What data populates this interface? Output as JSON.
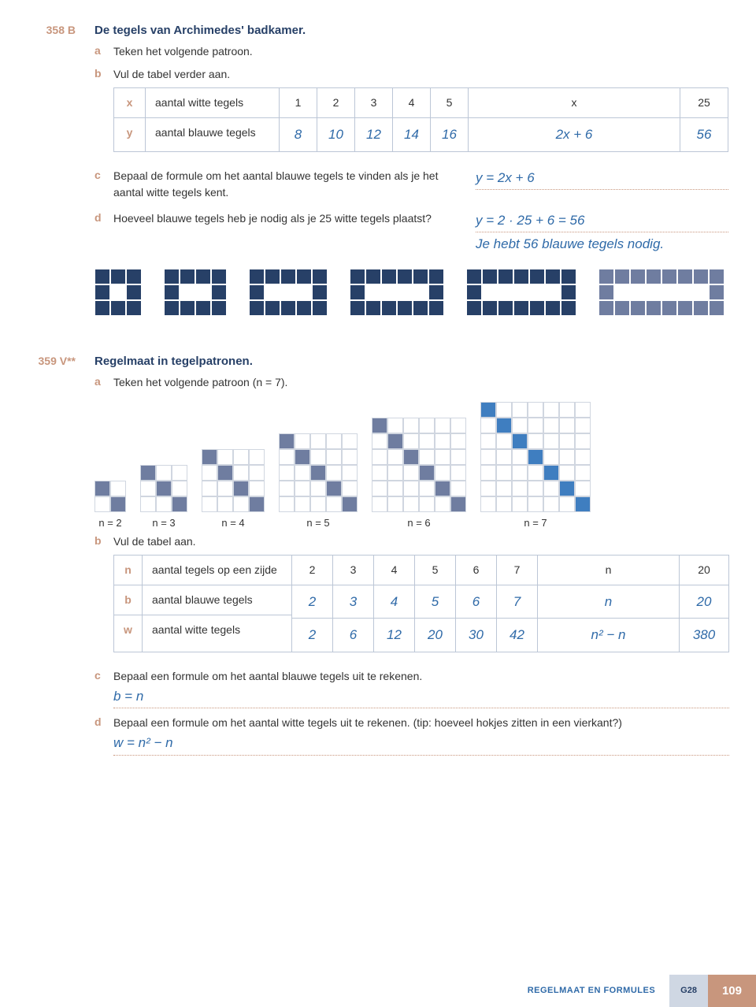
{
  "colors": {
    "dark_tile": "#274067",
    "light_tile": "#6f7da0",
    "blue_accent": "#3f7ec0",
    "salmon": "#c8967d",
    "answer_blue": "#2f6aa8",
    "grid_border": "#d0d6e0"
  },
  "ex358_num": "358 B",
  "ex358_title": "De tegels van Archimedes' badkamer.",
  "ex358_a": "Teken het volgende patroon.",
  "ex358_b": "Vul de tabel verder aan.",
  "table1": {
    "row_hdr1": "x",
    "row_hdr2": "y",
    "label1": "aantal witte tegels",
    "label2": "aantal blauwe tegels",
    "r1": [
      "1",
      "2",
      "3",
      "4",
      "5",
      "x",
      "25"
    ],
    "r2": [
      "8",
      "10",
      "12",
      "14",
      "16",
      "2x + 6",
      "56"
    ]
  },
  "ex358_c_q": "Bepaal de formule om het aantal blauwe tegels te vinden als je het aantal witte tegels kent.",
  "ex358_c_a": "y = 2x + 6",
  "ex358_d_q": "Hoeveel blauwe tegels heb je nodig als je 25 witte tegels plaatst?",
  "ex358_d_a1": "y = 2 · 25 + 6 = 56",
  "ex358_d_a2": "Je hebt 56 blauwe tegels nodig.",
  "ex359_num": "359 V**",
  "ex359_title": "Regelmaat in tegelpatronen.",
  "ex359_a": "Teken het volgende patroon (n = 7).",
  "diag_labels": [
    "n = 2",
    "n = 3",
    "n = 4",
    "n = 5",
    "n = 6",
    "n = 7"
  ],
  "ex359_b": "Vul de tabel aan.",
  "table2": {
    "h1": "n",
    "h2": "b",
    "h3": "w",
    "label1": "aantal tegels op een zijde",
    "label2": "aantal blauwe tegels",
    "label3": "aantal witte tegels",
    "r1": [
      "2",
      "3",
      "4",
      "5",
      "6",
      "7",
      "n",
      "20"
    ],
    "r2": [
      "2",
      "3",
      "4",
      "5",
      "6",
      "7",
      "n",
      "20"
    ],
    "r3": [
      "2",
      "6",
      "12",
      "20",
      "30",
      "42",
      "n² − n",
      "380"
    ]
  },
  "ex359_c_q": "Bepaal een formule om het aantal blauwe tegels uit te rekenen.",
  "ex359_c_a": "b = n",
  "ex359_d_q": "Bepaal een formule om het aantal witte tegels uit te rekenen. (tip: hoeveel hokjes zitten in een vierkant?)",
  "ex359_d_a": "w = n² − n",
  "footer_cat": "REGELMAAT EN FORMULES",
  "footer_code": "G28",
  "footer_page": "109"
}
